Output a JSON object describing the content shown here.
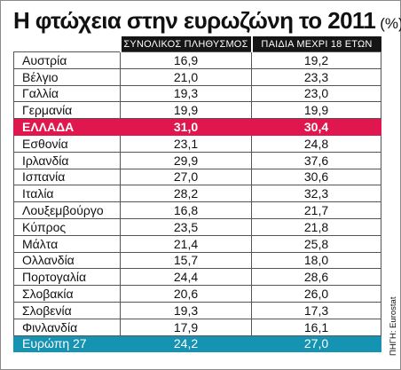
{
  "title": {
    "main": "Η φτώχεια στην ευρωζώνη το 2011",
    "unit": "(%)"
  },
  "source": "ΠΗΓΗ: Eurostat",
  "chart_data": {
    "type": "table",
    "columns": [
      "",
      "ΣΥΝΟΛΙΚΟΣ ΠΛΗΘΥΣΜΟΣ",
      "ΠΑΙΔΙΑ ΜΕΧΡΙ 18 ΕΤΩΝ"
    ],
    "rows": [
      {
        "country": "Αυστρία",
        "total": "16,9",
        "children": "19,2"
      },
      {
        "country": "Βέλγιο",
        "total": "21,0",
        "children": "23,3"
      },
      {
        "country": "Γαλλία",
        "total": "19,3",
        "children": "23,0"
      },
      {
        "country": "Γερμανία",
        "total": "19,9",
        "children": "19,9"
      },
      {
        "country": "ΕΛΛΑΔΑ",
        "total": "31,0",
        "children": "30,4",
        "highlight": "greece"
      },
      {
        "country": "Εσθονία",
        "total": "23,1",
        "children": "24,8"
      },
      {
        "country": "Ιρλανδία",
        "total": "29,9",
        "children": "37,6"
      },
      {
        "country": "Ισπανία",
        "total": "27,0",
        "children": "30,6"
      },
      {
        "country": "Ιταλία",
        "total": "28,2",
        "children": "32,3"
      },
      {
        "country": "Λουξεμβούργο",
        "total": "16,8",
        "children": "21,7"
      },
      {
        "country": "Κύπρος",
        "total": "23,5",
        "children": "21,8"
      },
      {
        "country": "Μάλτα",
        "total": "21,4",
        "children": "25,8"
      },
      {
        "country": "Ολλανδία",
        "total": "15,7",
        "children": "18,0"
      },
      {
        "country": "Πορτογαλία",
        "total": "24,4",
        "children": "28,6"
      },
      {
        "country": "Σλοβακία",
        "total": "20,6",
        "children": "26,0"
      },
      {
        "country": "Σλοβενία",
        "total": "19,3",
        "children": "17,3"
      },
      {
        "country": "Φινλανδία",
        "total": "17,9",
        "children": "16,1"
      },
      {
        "country": "Ευρώπη 27",
        "total": "24,2",
        "children": "27,0",
        "highlight": "eu"
      }
    ]
  },
  "colors": {
    "header_bg": "#151515",
    "greece_bg": "#e0174e",
    "eu_bg": "#1593b2",
    "grid": "#555555"
  }
}
